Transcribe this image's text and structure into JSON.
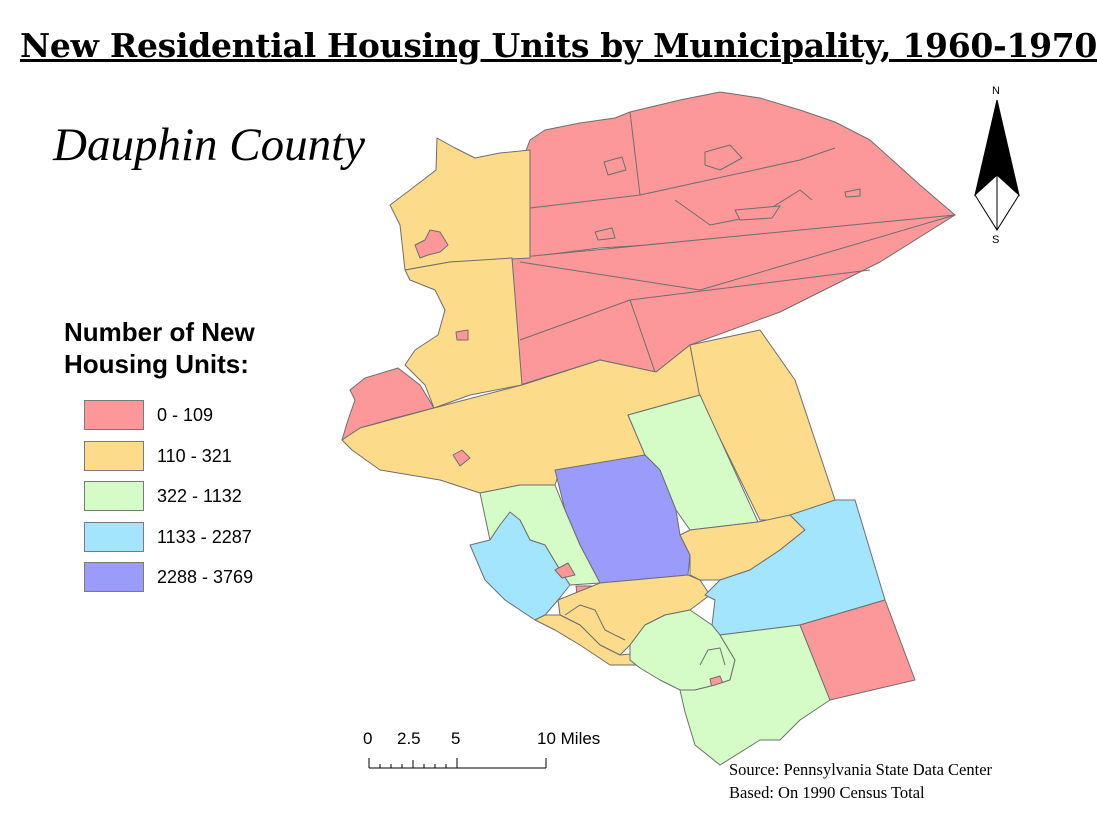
{
  "title": "New Residential Housing Units by Municipality, 1960-1970",
  "county_label": "Dauphin County",
  "legend": {
    "title_line1": "Number of New",
    "title_line2": "Housing Units:",
    "classes": [
      {
        "label": "0 - 109",
        "color": "#fc9899"
      },
      {
        "label": "110 - 321",
        "color": "#fcdc8b"
      },
      {
        "label": "322 - 1132",
        "color": "#d5fcc7"
      },
      {
        "label": "1133 - 2287",
        "color": "#a3e5fc"
      },
      {
        "label": "2288 - 3769",
        "color": "#9b9bfc"
      }
    ]
  },
  "scale_bar": {
    "labels": [
      "0",
      "2.5",
      "5",
      "10 Miles"
    ]
  },
  "north_arrow": {
    "n": "N",
    "s": "S"
  },
  "source": {
    "line1": "Source: Pennsylvania State Data Center",
    "line2": "Based: On 1990 Census Total"
  }
}
